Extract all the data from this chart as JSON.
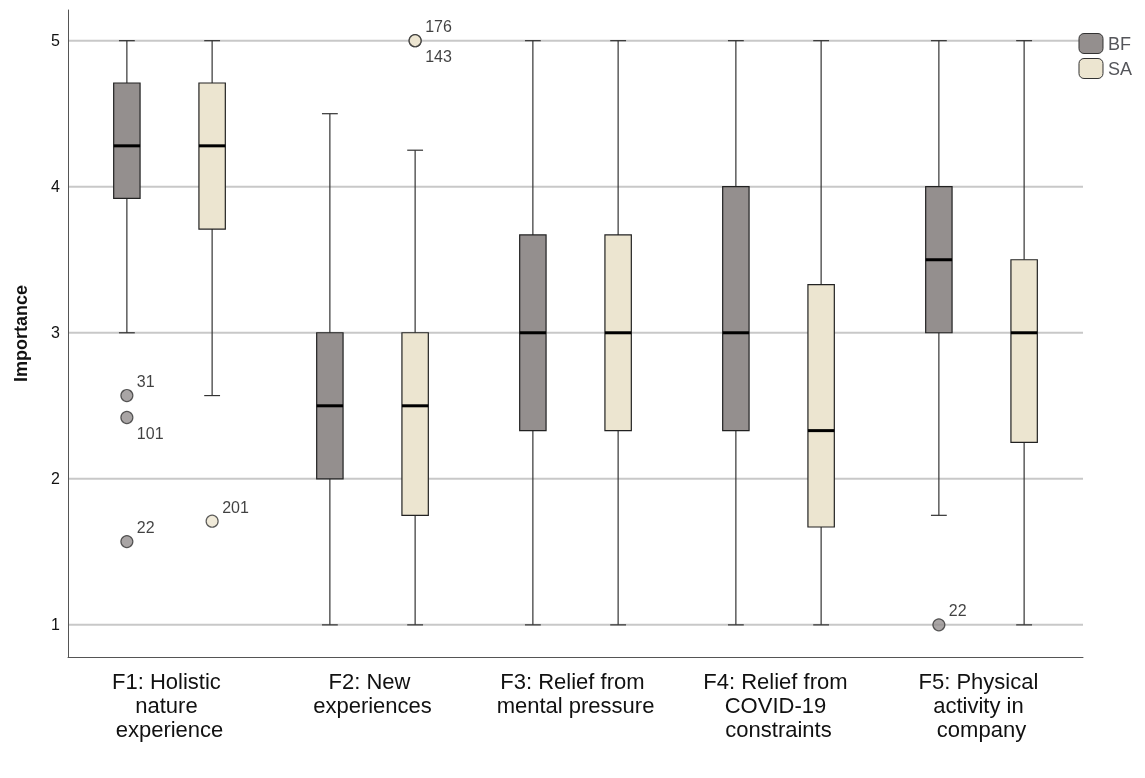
{
  "chart_data": {
    "type": "box",
    "ylabel": "Importance",
    "categories": [
      "F1: Holistic nature experience",
      "F2: New experiences",
      "F3: Relief from mental pressure",
      "F4: Relief from COVID-19 constraints",
      "F5: Physical activity in company"
    ],
    "series": [
      {
        "name": "BF",
        "color": "#948f8e",
        "boxes": [
          {
            "low": 3,
            "q1": 3.92,
            "median": 4.28,
            "q3": 4.71,
            "high": 5,
            "outliers": [
              2.57,
              2.42,
              1.57
            ]
          },
          {
            "low": 1,
            "q1": 2,
            "median": 2.5,
            "q3": 3,
            "high": 4.5
          },
          {
            "low": 1,
            "q1": 2.33,
            "median": 3,
            "q3": 3.67,
            "high": 5
          },
          {
            "low": 1,
            "q1": 2.33,
            "median": 3,
            "q3": 4,
            "high": 5
          },
          {
            "low": 1.75,
            "q1": 3,
            "median": 3.5,
            "q3": 4,
            "high": 5,
            "outliers": [
              1
            ]
          }
        ]
      },
      {
        "name": "SA",
        "color": "#ece5d0",
        "boxes": [
          {
            "low": 2.57,
            "q1": 3.71,
            "median": 4.28,
            "q3": 4.71,
            "high": 5,
            "outliers": [
              1.71
            ]
          },
          {
            "low": 1,
            "q1": 1.75,
            "median": 2.5,
            "q3": 3,
            "high": 4.25,
            "outliers": [
              5,
              5
            ]
          },
          {
            "low": 1,
            "q1": 2.33,
            "median": 3,
            "q3": 3.67,
            "high": 5
          },
          {
            "low": 1,
            "q1": 1.67,
            "median": 2.33,
            "q3": 3.33,
            "high": 5
          },
          {
            "low": 1,
            "q1": 2.25,
            "median": 3,
            "q3": 3.5,
            "high": 5
          }
        ]
      }
    ],
    "annotations": [
      "31",
      "101",
      "22",
      "22",
      "201",
      "176",
      "143"
    ],
    "ylim": [
      0.78,
      5.21
    ],
    "yticks": [
      1,
      2,
      3,
      4,
      5
    ],
    "grid": "y",
    "legend": "top right",
    "marker": "circle"
  }
}
